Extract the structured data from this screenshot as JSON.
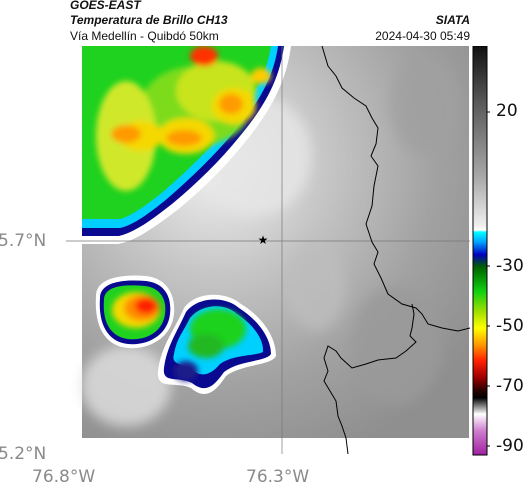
{
  "header": {
    "source": "GOES-EAST",
    "product": "Temperatura de Brillo CH13",
    "region": "Vía Medellín - Quibdó 50km",
    "org": "SIATA",
    "timestamp": "2024-04-30 05:49"
  },
  "axes": {
    "lat_ticks": [
      "5.7°N",
      "5.2°N"
    ],
    "lon_ticks": [
      "76.8°W",
      "76.3°W"
    ]
  },
  "colorbar": {
    "ticks": [
      "20",
      "-30",
      "-50",
      "-70",
      "-90"
    ],
    "palette": [
      "#ffffff",
      "#888888",
      "#2a2a2a",
      "#00c8ff",
      "#1010b0",
      "#00ff00",
      "#008000",
      "#ffff00",
      "#ff8c00",
      "#ff0000",
      "#600000",
      "#8b0000",
      "#c060c0"
    ]
  },
  "map": {
    "marker": "★",
    "colors": {
      "background": "#a8a8a8",
      "cold_high": "#ff3000",
      "border_line": "#000000"
    }
  }
}
